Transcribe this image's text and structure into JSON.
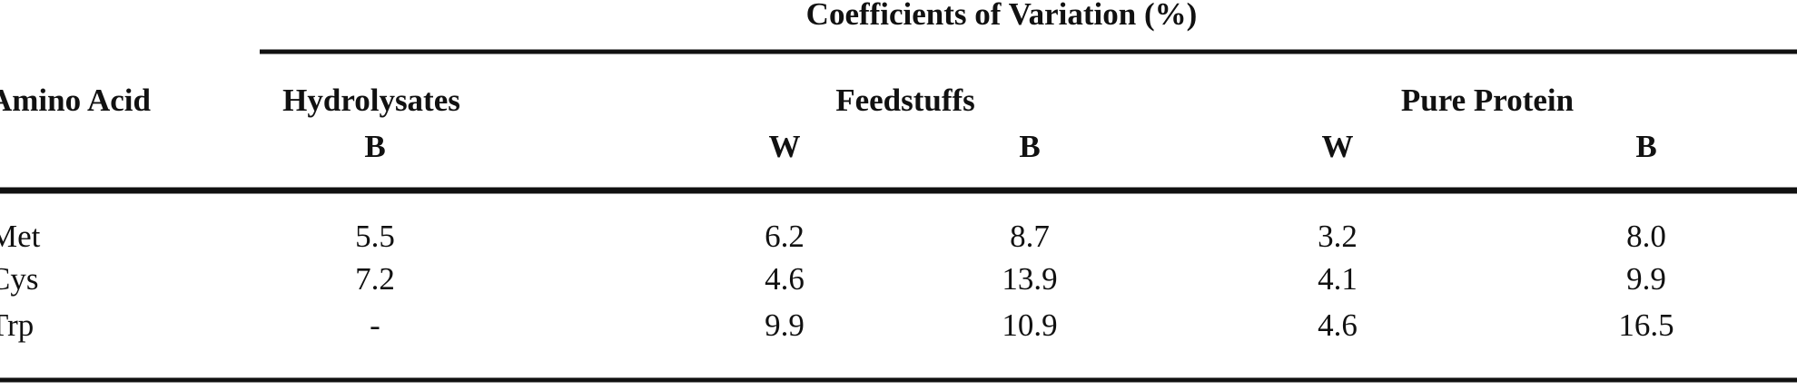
{
  "table": {
    "title": "Coefficients of Variation (%)",
    "row_header": "Amino Acid",
    "groups": [
      "Hydrolysates",
      "Feedstuffs",
      "Pure Protein"
    ],
    "subheaders": [
      "B",
      "W",
      "B",
      "W",
      "B"
    ],
    "rows": [
      [
        "Met",
        "5.5",
        "6.2",
        "8.7",
        "3.2",
        "8.0"
      ],
      [
        "Cys",
        "7.2",
        "4.6",
        "13.9",
        "4.1",
        "9.9"
      ],
      [
        "Trp",
        "-",
        "9.9",
        "10.9",
        "4.6",
        "16.5"
      ]
    ]
  }
}
